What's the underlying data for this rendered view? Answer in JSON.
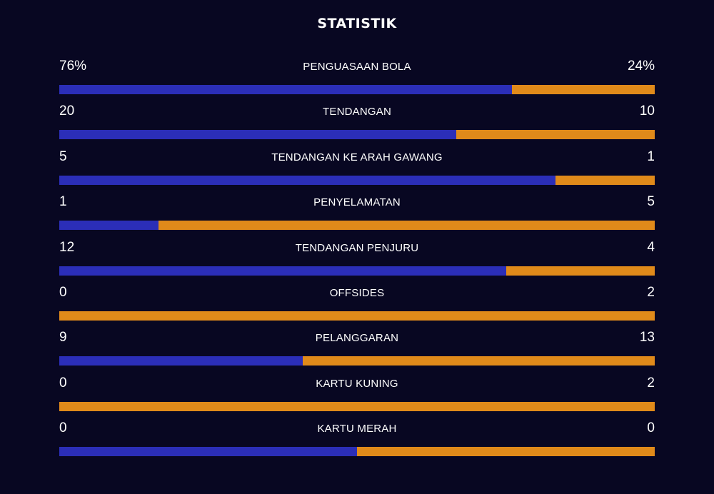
{
  "title": "STATISTIK",
  "colors": {
    "background": "#080722",
    "home": "#2b2eb8",
    "away": "#e08a1a",
    "text": "#ffffff"
  },
  "stats": [
    {
      "label": "PENGUASAAN BOLA",
      "home": "76%",
      "away": "24%",
      "home_share": 0.76
    },
    {
      "label": "TENDANGAN",
      "home": "20",
      "away": "10",
      "home_share": 0.6667
    },
    {
      "label": "TENDANGAN KE ARAH GAWANG",
      "home": "5",
      "away": "1",
      "home_share": 0.8333
    },
    {
      "label": "PENYELAMATAN",
      "home": "1",
      "away": "5",
      "home_share": 0.1667
    },
    {
      "label": "TENDANGAN PENJURU",
      "home": "12",
      "away": "4",
      "home_share": 0.75
    },
    {
      "label": "OFFSIDES",
      "home": "0",
      "away": "2",
      "home_share": 0
    },
    {
      "label": "PELANGGARAN",
      "home": "9",
      "away": "13",
      "home_share": 0.4091
    },
    {
      "label": "KARTU KUNING",
      "home": "0",
      "away": "2",
      "home_share": 0
    },
    {
      "label": "KARTU MERAH",
      "home": "0",
      "away": "0",
      "home_share": 0.5
    }
  ]
}
